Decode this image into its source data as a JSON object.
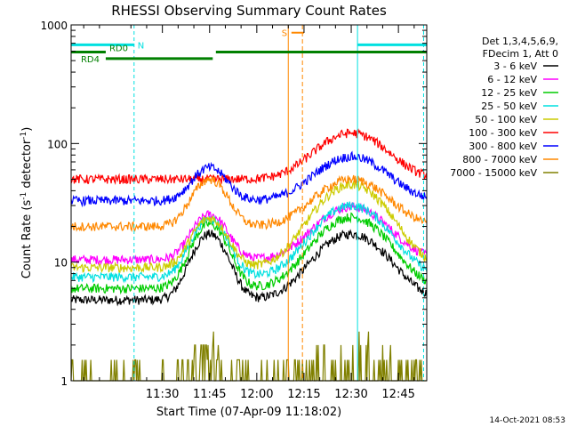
{
  "chart_data": {
    "type": "line",
    "title": "RHESSI Observing Summary Count Rates",
    "xlabel": "Start Time (07-Apr-09 11:18:02)",
    "ylabel_main": "Count Rate (s",
    "ylabel_sup1": "-1",
    "ylabel_mid": " detector",
    "ylabel_sup2": "-1",
    "ylabel_end": ")",
    "y_scale": "log",
    "ylim": [
      1,
      1000
    ],
    "xlim_minutes": [
      1,
      114
    ],
    "yticks": [
      {
        "value": 1,
        "label": "1"
      },
      {
        "value": 10,
        "label": "10"
      },
      {
        "value": 100,
        "label": "100"
      },
      {
        "value": 1000,
        "label": "1000"
      }
    ],
    "xticks": [
      {
        "minute": 30,
        "label": "11:30"
      },
      {
        "minute": 45,
        "label": "11:45"
      },
      {
        "minute": 60,
        "label": "12:00"
      },
      {
        "minute": 75,
        "label": "12:15"
      },
      {
        "minute": 90,
        "label": "12:30"
      },
      {
        "minute": 105,
        "label": "12:45"
      }
    ],
    "legend_header": [
      "Det 1,3,4,5,6,9,",
      "FDecim 1, Att 0"
    ],
    "legend_position": "right",
    "series": [
      {
        "name": "3 - 6 keV",
        "color": "#000000",
        "level": 4.8,
        "peak1": 3.6,
        "peak2": 3.6
      },
      {
        "name": "6 - 12 keV",
        "color": "#ff00ff",
        "level": 10.5,
        "peak1": 2.4,
        "peak2": 2.8
      },
      {
        "name": "12 - 25 keV",
        "color": "#00cc00",
        "level": 6.0,
        "peak1": 3.5,
        "peak2": 4.0
      },
      {
        "name": "25 - 50 keV",
        "color": "#00e0e0",
        "level": 7.5,
        "peak1": 3.1,
        "peak2": 4.0
      },
      {
        "name": "50 - 100 keV",
        "color": "#cccc00",
        "level": 9.0,
        "peak1": 2.6,
        "peak2": 5.0
      },
      {
        "name": "100 - 300 keV",
        "color": "#ff0000",
        "level": 50,
        "peak1": 1.0,
        "peak2": 2.45
      },
      {
        "name": "300 - 800 keV",
        "color": "#0000ff",
        "level": 33,
        "peak1": 1.9,
        "peak2": 2.35
      },
      {
        "name": "800 - 7000 keV",
        "color": "#ff8800",
        "level": 20,
        "peak1": 2.5,
        "peak2": 2.5
      },
      {
        "name": "7000 - 15000 keV",
        "color": "#808000",
        "level": 1.0,
        "peak1": 1.8,
        "peak2": 2.6
      }
    ],
    "attenuator_states": [
      {
        "label": "N",
        "color": "#00e0e0",
        "start_minute": 1,
        "end_minute": 21,
        "level": 680
      },
      {
        "label": "N",
        "color": "#00e0e0",
        "start_minute": 92,
        "end_minute": 114,
        "level": 680
      }
    ],
    "decimation_states": [
      {
        "label": "RD0",
        "color": "#008000",
        "start_minute": 1,
        "end_minute": 12,
        "level": 590
      },
      {
        "label": "RD4",
        "color": "#008000",
        "start_minute": 12,
        "end_minute": 46,
        "level": 520
      },
      {
        "label": "",
        "color": "#008000",
        "start_minute": 47,
        "end_minute": 114,
        "level": 590
      }
    ],
    "saa_marker": {
      "label": "S",
      "color": "#ff8800",
      "start_minute": 71,
      "end_minute": 75,
      "level": 860
    },
    "night_boundaries_minutes": [
      21,
      113
    ],
    "day_boundaries_minutes": [
      1,
      92
    ],
    "saa_boundaries_minutes": [
      70,
      74.5
    ]
  },
  "timestamp": "14-Oct-2021 08:53"
}
